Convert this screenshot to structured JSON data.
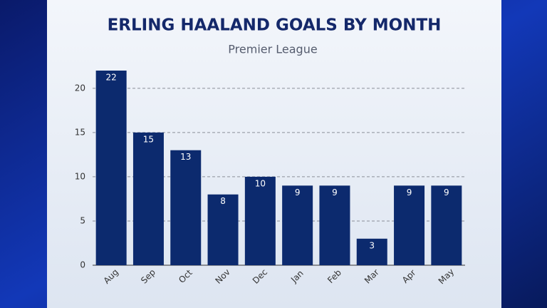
{
  "chart_data": {
    "type": "bar",
    "title": "ERLING HAALAND GOALS BY MONTH",
    "subtitle": "Premier League",
    "categories": [
      "Aug",
      "Sep",
      "Oct",
      "Nov",
      "Dec",
      "Jan",
      "Feb",
      "Mar",
      "Apr",
      "May"
    ],
    "values": [
      22,
      15,
      13,
      8,
      10,
      9,
      9,
      3,
      9,
      9
    ],
    "color": "#0c2a6e",
    "ylim": [
      0,
      22
    ],
    "yticks": [
      0,
      5,
      10,
      15,
      20
    ],
    "grid": true
  }
}
